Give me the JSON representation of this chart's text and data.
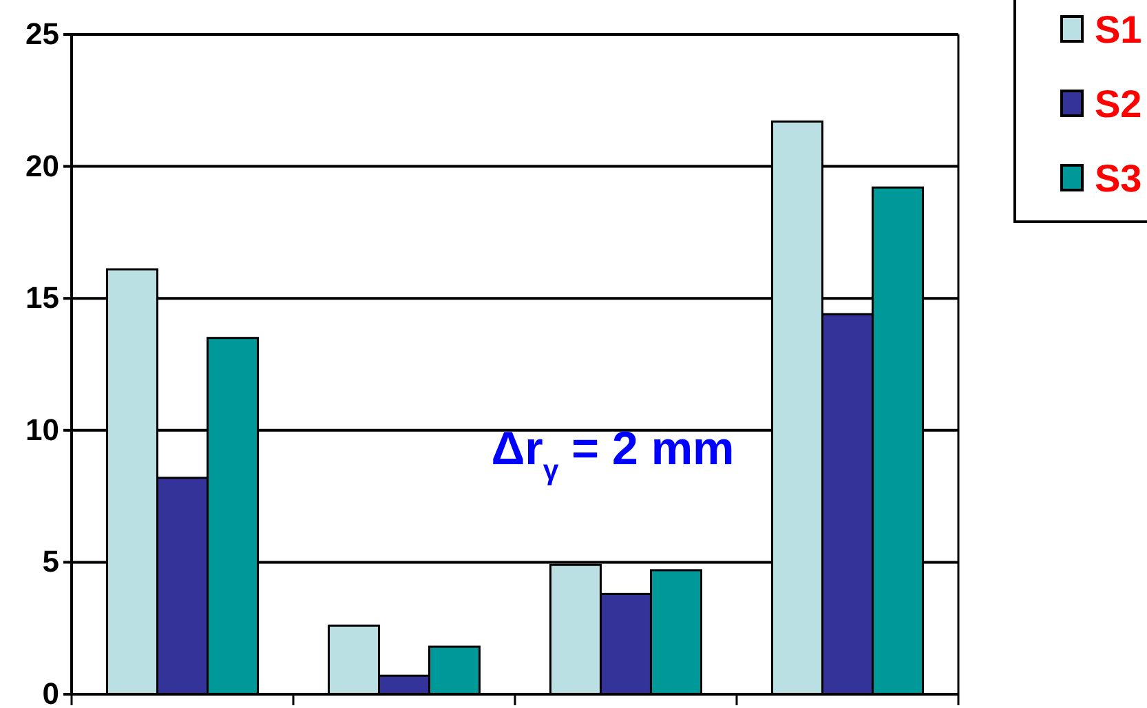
{
  "chart_data": {
    "type": "bar",
    "categories": [
      null,
      null,
      null,
      null
    ],
    "series": [
      {
        "name": "S1",
        "color": "#bbe0e3",
        "values": [
          16.1,
          2.6,
          4.9,
          21.7
        ]
      },
      {
        "name": "S2",
        "color": "#333399",
        "values": [
          8.2,
          0.7,
          3.8,
          14.4
        ]
      },
      {
        "name": "S3",
        "color": "#009999",
        "values": [
          13.5,
          1.8,
          4.7,
          19.2
        ]
      }
    ],
    "ylim": [
      0,
      25
    ],
    "yticks": [
      0,
      5,
      10,
      15,
      20,
      25
    ],
    "grid": "y",
    "legend": "top right",
    "annotations": [
      "Δr$_{γ}$ = 2 mm"
    ]
  }
}
